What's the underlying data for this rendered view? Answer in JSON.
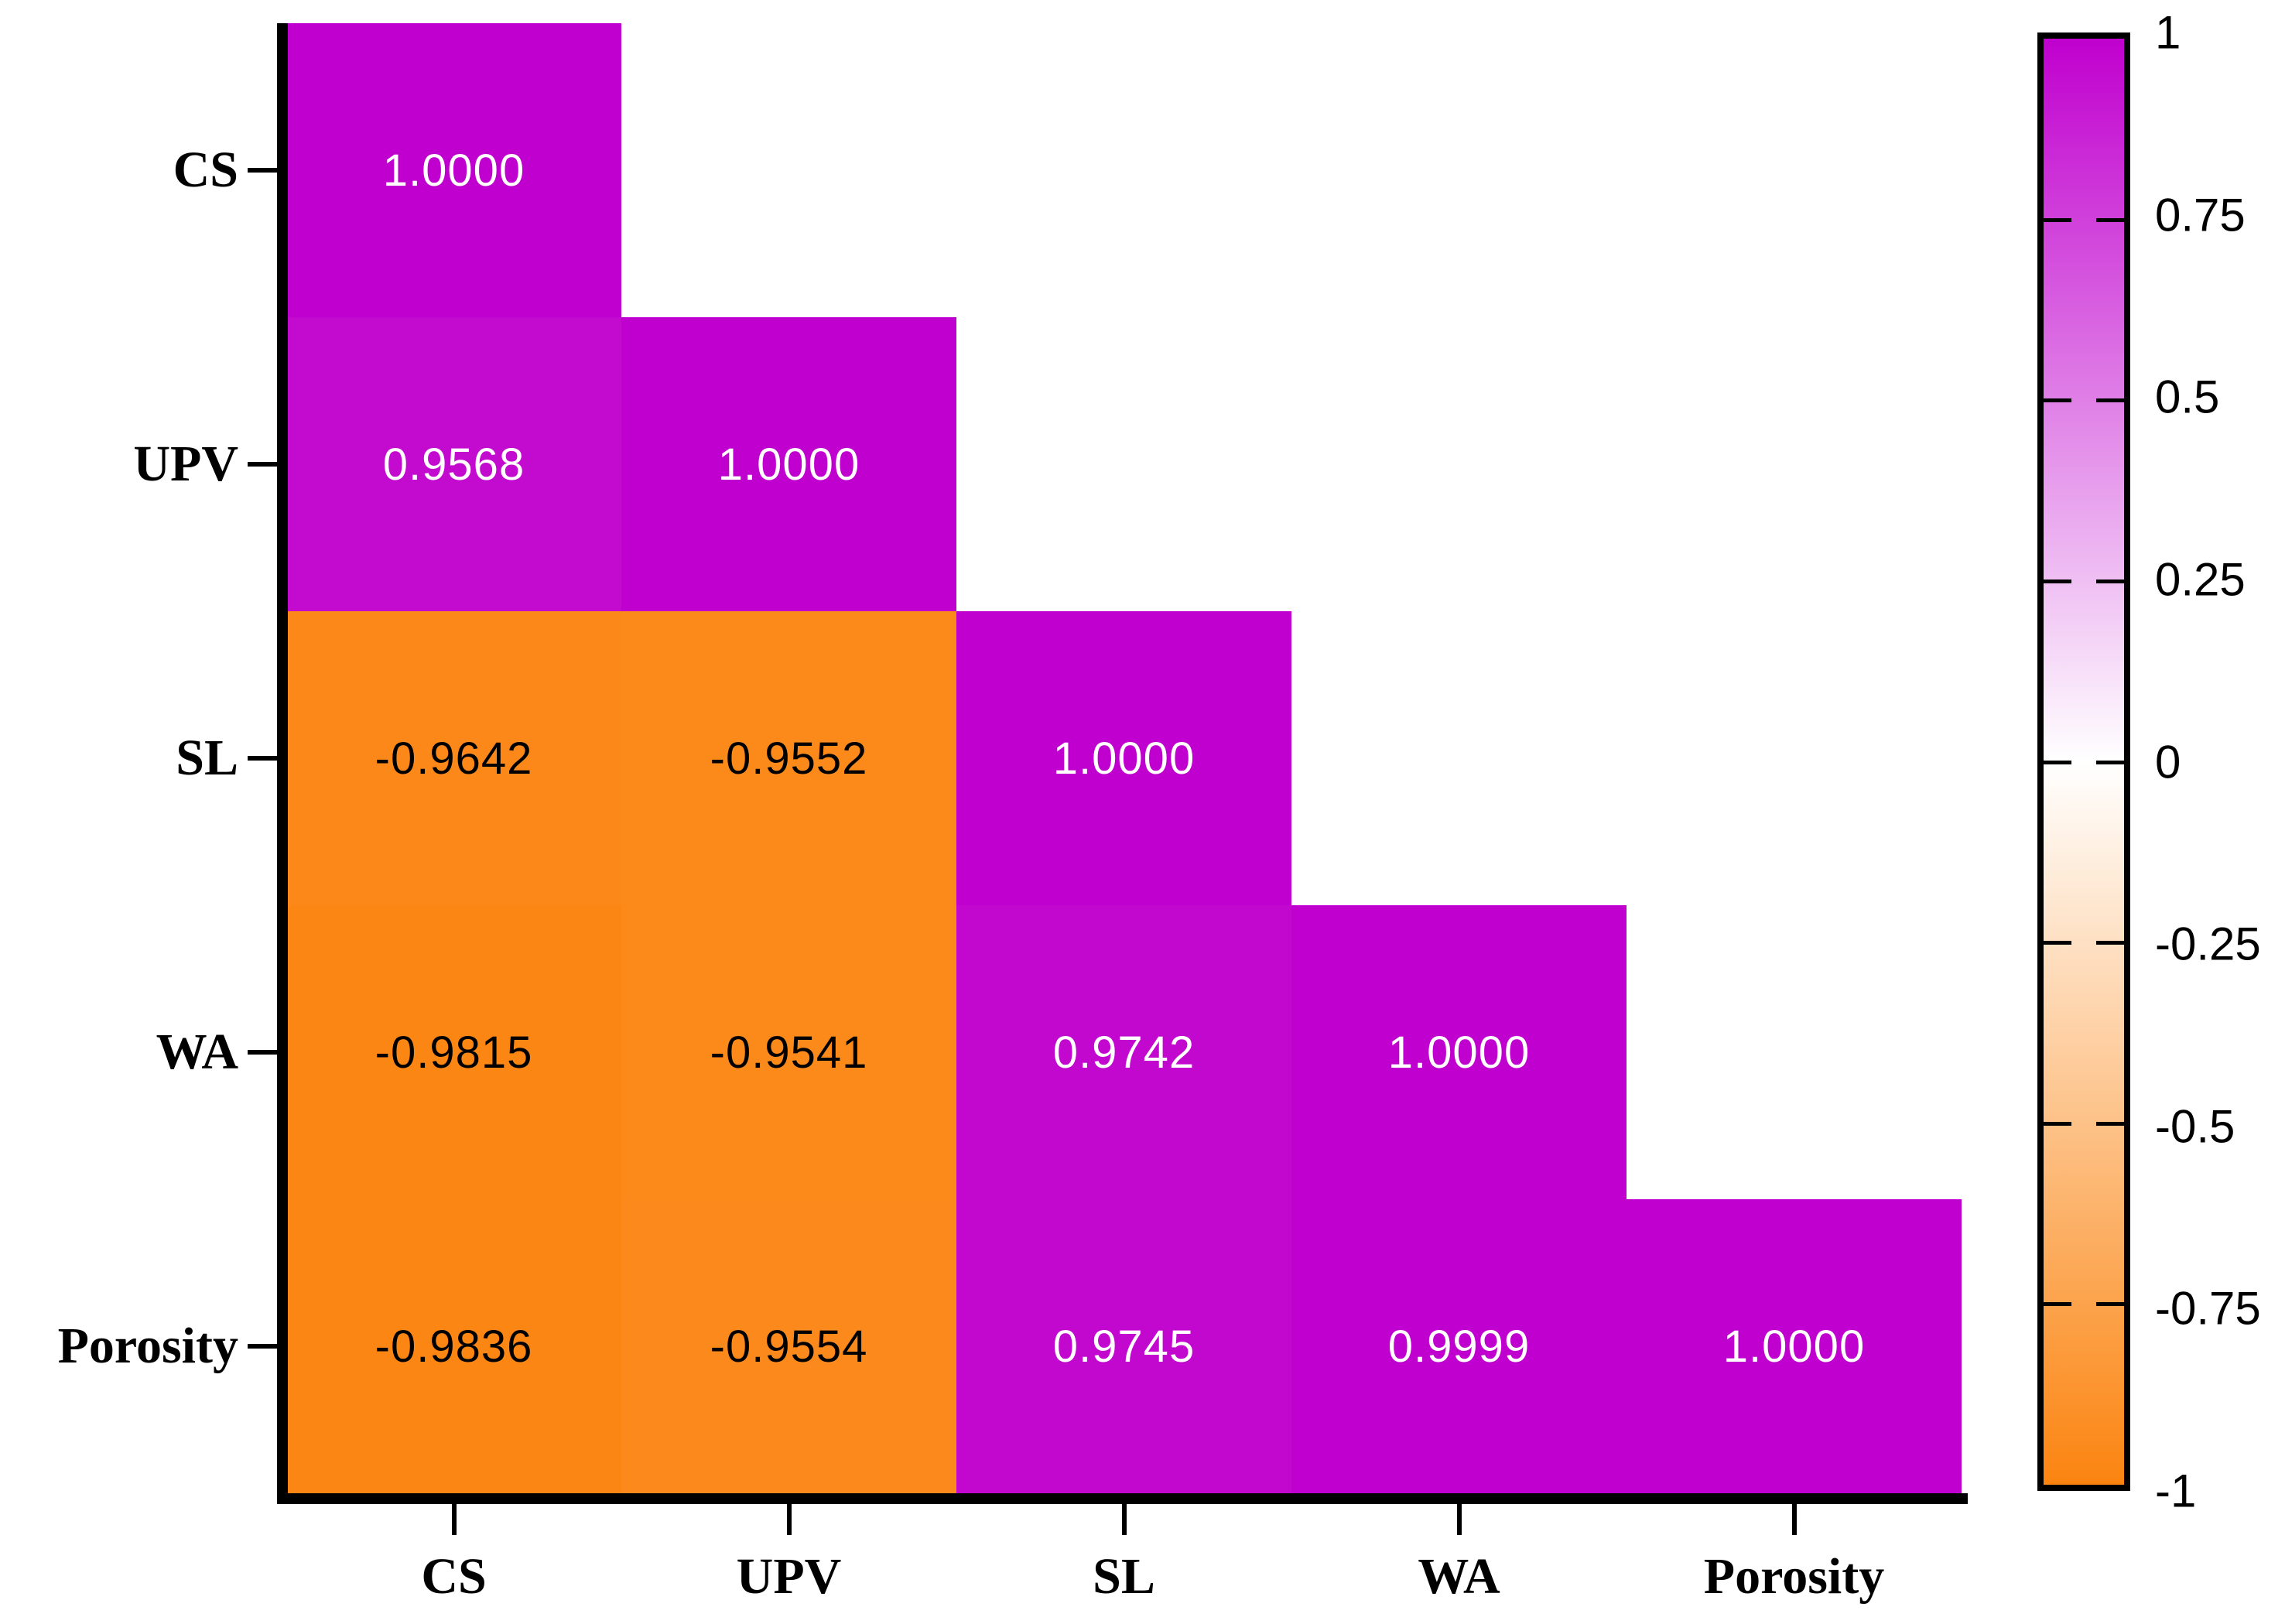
{
  "chart_data": {
    "type": "heatmap",
    "subtype": "lower-triangular correlation matrix",
    "title": "",
    "variables": [
      "CS",
      "UPV",
      "SL",
      "WA",
      "Porosity"
    ],
    "x_labels": [
      "CS",
      "UPV",
      "SL",
      "WA",
      "Porosity"
    ],
    "y_labels": [
      "CS",
      "UPV",
      "SL",
      "WA",
      "Porosity"
    ],
    "cells": [
      {
        "row": "CS",
        "col": "CS",
        "value": "1.0000"
      },
      {
        "row": "UPV",
        "col": "CS",
        "value": "0.9568"
      },
      {
        "row": "UPV",
        "col": "UPV",
        "value": "1.0000"
      },
      {
        "row": "SL",
        "col": "CS",
        "value": "-0.9642"
      },
      {
        "row": "SL",
        "col": "UPV",
        "value": "-0.9552"
      },
      {
        "row": "SL",
        "col": "SL",
        "value": "1.0000"
      },
      {
        "row": "WA",
        "col": "CS",
        "value": "-0.9815"
      },
      {
        "row": "WA",
        "col": "UPV",
        "value": "-0.9541"
      },
      {
        "row": "WA",
        "col": "SL",
        "value": "0.9742"
      },
      {
        "row": "WA",
        "col": "WA",
        "value": "1.0000"
      },
      {
        "row": "Porosity",
        "col": "CS",
        "value": "-0.9836"
      },
      {
        "row": "Porosity",
        "col": "UPV",
        "value": "-0.9554"
      },
      {
        "row": "Porosity",
        "col": "SL",
        "value": "0.9745"
      },
      {
        "row": "Porosity",
        "col": "WA",
        "value": "0.9999"
      },
      {
        "row": "Porosity",
        "col": "Porosity",
        "value": "1.0000"
      }
    ],
    "colorbar": {
      "range": [
        -1,
        1
      ],
      "tick_labels": [
        "1",
        "0.75",
        "0.5",
        "0.25",
        "0",
        "-0.25",
        "-0.5",
        "-0.75",
        "-1"
      ],
      "orientation": "vertical",
      "position": "right"
    },
    "colors": {
      "positive_end": "#C000CE",
      "zero": "#FFFFFF",
      "negative_end": "#FB8410",
      "positive_text": "#FFFFFF",
      "negative_text": "#000000",
      "axis": "#000000"
    },
    "legend_position": "right",
    "grid": false
  }
}
